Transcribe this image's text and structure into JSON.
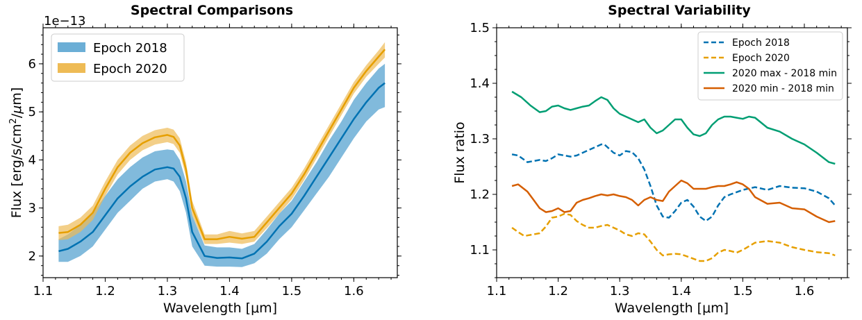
{
  "chart_data": [
    {
      "type": "line",
      "title": "Spectral Comparisons",
      "xlabel": "Wavelength [μm]",
      "ylabel": "Flux [erg/s/cm²/μm]",
      "offset_label": "1e−13",
      "xlim": [
        1.1,
        1.67
      ],
      "ylim": [
        1.55,
        6.75
      ],
      "xticks": [
        1.1,
        1.2,
        1.3,
        1.4,
        1.5,
        1.6
      ],
      "xtick_labels": [
        "1.1",
        "1.2",
        "1.3",
        "1.4",
        "1.5",
        "1.6"
      ],
      "yticks": [
        2,
        3,
        4,
        5,
        6
      ],
      "ytick_labels": [
        "2",
        "3",
        "4",
        "5",
        "6"
      ],
      "grid": false,
      "legend_position": "upper-left",
      "x": [
        1.125,
        1.14,
        1.16,
        1.18,
        1.2,
        1.22,
        1.24,
        1.26,
        1.28,
        1.3,
        1.31,
        1.32,
        1.33,
        1.34,
        1.36,
        1.38,
        1.4,
        1.42,
        1.44,
        1.46,
        1.48,
        1.5,
        1.52,
        1.54,
        1.56,
        1.58,
        1.6,
        1.62,
        1.64,
        1.65
      ],
      "series": [
        {
          "name": "Epoch 2018",
          "color": "#0072b2",
          "fill": "#6baed6",
          "values": [
            2.1,
            2.15,
            2.3,
            2.5,
            2.85,
            3.2,
            3.45,
            3.65,
            3.8,
            3.85,
            3.82,
            3.65,
            3.2,
            2.5,
            2.0,
            1.96,
            1.97,
            1.95,
            2.05,
            2.3,
            2.62,
            2.88,
            3.25,
            3.65,
            4.05,
            4.45,
            4.85,
            5.2,
            5.5,
            5.6
          ],
          "lower": [
            1.88,
            1.88,
            2.0,
            2.2,
            2.55,
            2.9,
            3.15,
            3.4,
            3.55,
            3.6,
            3.55,
            3.35,
            2.9,
            2.2,
            1.8,
            1.78,
            1.78,
            1.77,
            1.85,
            2.05,
            2.35,
            2.6,
            2.95,
            3.3,
            3.65,
            4.05,
            4.45,
            4.8,
            5.05,
            5.1
          ],
          "upper": [
            2.35,
            2.45,
            2.65,
            2.9,
            3.25,
            3.6,
            3.85,
            4.05,
            4.18,
            4.22,
            4.2,
            4.0,
            3.55,
            2.85,
            2.22,
            2.18,
            2.18,
            2.15,
            2.25,
            2.55,
            2.88,
            3.15,
            3.55,
            3.95,
            4.4,
            4.8,
            5.25,
            5.6,
            5.9,
            6.0
          ]
        },
        {
          "name": "Epoch 2020",
          "color": "#e69f00",
          "fill": "#eebb55",
          "values": [
            2.48,
            2.5,
            2.65,
            2.9,
            3.4,
            3.85,
            4.15,
            4.35,
            4.47,
            4.52,
            4.48,
            4.3,
            3.8,
            3.0,
            2.35,
            2.35,
            2.4,
            2.36,
            2.4,
            2.7,
            3.0,
            3.3,
            3.7,
            4.15,
            4.6,
            5.05,
            5.5,
            5.85,
            6.15,
            6.3
          ],
          "lower": [
            2.33,
            2.35,
            2.5,
            2.75,
            3.25,
            3.7,
            4.0,
            4.2,
            4.32,
            4.37,
            4.33,
            4.15,
            3.65,
            2.85,
            2.25,
            2.25,
            2.28,
            2.25,
            2.3,
            2.58,
            2.88,
            3.18,
            3.58,
            4.03,
            4.48,
            4.93,
            5.38,
            5.73,
            6.0,
            6.13
          ],
          "upper": [
            2.62,
            2.65,
            2.8,
            3.05,
            3.55,
            4.0,
            4.3,
            4.5,
            4.62,
            4.67,
            4.63,
            4.45,
            3.95,
            3.15,
            2.45,
            2.45,
            2.52,
            2.47,
            2.52,
            2.82,
            3.12,
            3.42,
            3.82,
            4.27,
            4.72,
            5.17,
            5.62,
            5.97,
            6.28,
            6.45
          ]
        }
      ]
    },
    {
      "type": "line",
      "title": "Spectral Variability",
      "xlabel": "Wavelength [μm]",
      "ylabel": "Flux ratio",
      "xlim": [
        1.1,
        1.67
      ],
      "ylim": [
        1.05,
        1.5
      ],
      "xticks": [
        1.1,
        1.2,
        1.3,
        1.4,
        1.5,
        1.6
      ],
      "xtick_labels": [
        "1.1",
        "1.2",
        "1.3",
        "1.4",
        "1.5",
        "1.6"
      ],
      "yticks": [
        1.1,
        1.2,
        1.3,
        1.4,
        1.5
      ],
      "ytick_labels": [
        "1.1",
        "1.2",
        "1.3",
        "1.4",
        "1.5"
      ],
      "grid": false,
      "legend_position": "upper-right",
      "series": [
        {
          "name": "Epoch 2018",
          "color": "#0072b2",
          "dashed": true,
          "x": [
            1.125,
            1.135,
            1.15,
            1.16,
            1.17,
            1.18,
            1.19,
            1.2,
            1.21,
            1.22,
            1.23,
            1.24,
            1.25,
            1.26,
            1.27,
            1.275,
            1.28,
            1.29,
            1.3,
            1.31,
            1.32,
            1.33,
            1.34,
            1.35,
            1.36,
            1.37,
            1.38,
            1.39,
            1.4,
            1.41,
            1.42,
            1.43,
            1.44,
            1.45,
            1.46,
            1.47,
            1.48,
            1.5,
            1.52,
            1.54,
            1.56,
            1.58,
            1.6,
            1.62,
            1.64,
            1.65
          ],
          "values": [
            1.272,
            1.27,
            1.258,
            1.26,
            1.262,
            1.26,
            1.265,
            1.272,
            1.27,
            1.268,
            1.27,
            1.275,
            1.28,
            1.285,
            1.29,
            1.29,
            1.285,
            1.275,
            1.27,
            1.278,
            1.276,
            1.265,
            1.245,
            1.215,
            1.18,
            1.16,
            1.158,
            1.17,
            1.185,
            1.19,
            1.178,
            1.16,
            1.152,
            1.16,
            1.18,
            1.195,
            1.2,
            1.208,
            1.213,
            1.208,
            1.215,
            1.212,
            1.211,
            1.205,
            1.193,
            1.18
          ]
        },
        {
          "name": "Epoch 2020",
          "color": "#e69f00",
          "dashed": true,
          "x": [
            1.125,
            1.135,
            1.145,
            1.16,
            1.17,
            1.18,
            1.19,
            1.2,
            1.21,
            1.22,
            1.23,
            1.24,
            1.25,
            1.26,
            1.27,
            1.28,
            1.29,
            1.3,
            1.31,
            1.32,
            1.33,
            1.34,
            1.35,
            1.36,
            1.37,
            1.38,
            1.39,
            1.4,
            1.41,
            1.42,
            1.43,
            1.44,
            1.45,
            1.46,
            1.47,
            1.48,
            1.49,
            1.5,
            1.52,
            1.54,
            1.56,
            1.58,
            1.6,
            1.62,
            1.64,
            1.65
          ],
          "values": [
            1.14,
            1.132,
            1.125,
            1.128,
            1.13,
            1.142,
            1.158,
            1.16,
            1.165,
            1.163,
            1.152,
            1.145,
            1.14,
            1.14,
            1.143,
            1.145,
            1.14,
            1.135,
            1.128,
            1.125,
            1.13,
            1.128,
            1.115,
            1.1,
            1.09,
            1.092,
            1.093,
            1.092,
            1.088,
            1.084,
            1.08,
            1.08,
            1.085,
            1.095,
            1.1,
            1.098,
            1.095,
            1.1,
            1.113,
            1.116,
            1.113,
            1.105,
            1.1,
            1.096,
            1.094,
            1.09
          ]
        },
        {
          "name": "2020 max - 2018 min",
          "color": "#009e73",
          "dashed": false,
          "x": [
            1.125,
            1.14,
            1.155,
            1.17,
            1.18,
            1.19,
            1.2,
            1.21,
            1.22,
            1.23,
            1.24,
            1.25,
            1.26,
            1.27,
            1.28,
            1.29,
            1.3,
            1.31,
            1.32,
            1.33,
            1.34,
            1.35,
            1.36,
            1.37,
            1.38,
            1.39,
            1.4,
            1.41,
            1.42,
            1.43,
            1.44,
            1.45,
            1.46,
            1.47,
            1.48,
            1.49,
            1.5,
            1.51,
            1.52,
            1.54,
            1.56,
            1.58,
            1.6,
            1.62,
            1.64,
            1.65
          ],
          "values": [
            1.385,
            1.375,
            1.36,
            1.348,
            1.35,
            1.358,
            1.36,
            1.355,
            1.352,
            1.355,
            1.358,
            1.36,
            1.368,
            1.375,
            1.37,
            1.355,
            1.345,
            1.34,
            1.335,
            1.33,
            1.335,
            1.32,
            1.31,
            1.315,
            1.325,
            1.335,
            1.335,
            1.32,
            1.308,
            1.305,
            1.31,
            1.325,
            1.335,
            1.34,
            1.34,
            1.338,
            1.336,
            1.34,
            1.338,
            1.32,
            1.313,
            1.3,
            1.29,
            1.275,
            1.258,
            1.255
          ]
        },
        {
          "name": "2020 min - 2018 min",
          "color": "#d55e00",
          "dashed": false,
          "x": [
            1.125,
            1.135,
            1.15,
            1.16,
            1.17,
            1.18,
            1.19,
            1.2,
            1.21,
            1.22,
            1.23,
            1.24,
            1.25,
            1.26,
            1.27,
            1.28,
            1.29,
            1.3,
            1.31,
            1.32,
            1.33,
            1.34,
            1.35,
            1.36,
            1.37,
            1.38,
            1.39,
            1.4,
            1.41,
            1.42,
            1.43,
            1.44,
            1.45,
            1.46,
            1.47,
            1.48,
            1.49,
            1.5,
            1.51,
            1.52,
            1.54,
            1.56,
            1.58,
            1.6,
            1.62,
            1.64,
            1.65
          ],
          "values": [
            1.215,
            1.218,
            1.205,
            1.19,
            1.175,
            1.168,
            1.17,
            1.175,
            1.168,
            1.17,
            1.185,
            1.19,
            1.193,
            1.197,
            1.2,
            1.198,
            1.2,
            1.197,
            1.195,
            1.19,
            1.18,
            1.19,
            1.195,
            1.19,
            1.188,
            1.205,
            1.215,
            1.225,
            1.22,
            1.21,
            1.21,
            1.21,
            1.213,
            1.215,
            1.215,
            1.218,
            1.222,
            1.218,
            1.21,
            1.195,
            1.183,
            1.185,
            1.175,
            1.173,
            1.16,
            1.15,
            1.152
          ]
        }
      ]
    }
  ]
}
